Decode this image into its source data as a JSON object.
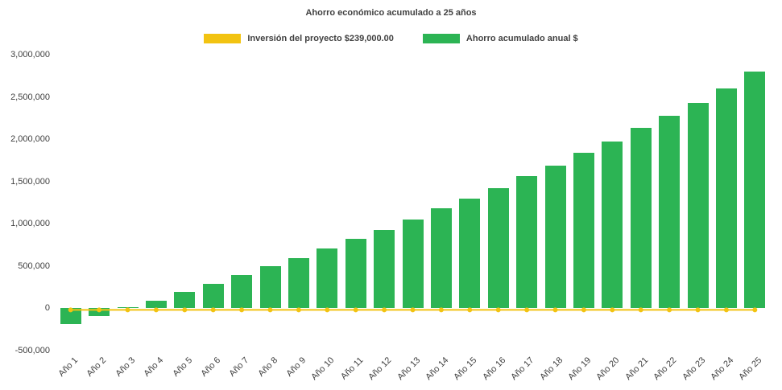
{
  "title": "Ahorro económico acumulado a 25 años",
  "legend": [
    {
      "label": "Inversión del proyecto $239,000.00",
      "color": "#F2C311"
    },
    {
      "label": "Ahorro acumulado anual $",
      "color": "#2CB454"
    }
  ],
  "colors": {
    "investment_line": "#F2C311",
    "savings_bar": "#2CB454",
    "text": "#404040",
    "background": "#FFFFFF"
  },
  "chart_data": {
    "type": "bar",
    "title": "Ahorro económico acumulado a 25 años",
    "xlabel": "",
    "ylabel": "",
    "ylim": [
      -500000,
      3000000
    ],
    "ytick_step": 500000,
    "grid": false,
    "legend_position": "top",
    "categories": [
      "Año 1",
      "Año 2",
      "Año 3",
      "Año 4",
      "Año 5",
      "Año 6",
      "Año 7",
      "Año 8",
      "Año 9",
      "Año 10",
      "Año 11",
      "Año 12",
      "Año 13",
      "Año 14",
      "Año 15",
      "Año 16",
      "Año 17",
      "Año 18",
      "Año 19",
      "Año 20",
      "Año 21",
      "Año 22",
      "Año 23",
      "Año 24",
      "Año 25"
    ],
    "series": [
      {
        "name": "Inversión del proyecto $239,000.00",
        "type": "line",
        "color": "#F2C311",
        "values": [
          0,
          0,
          0,
          0,
          0,
          0,
          0,
          0,
          0,
          0,
          0,
          0,
          0,
          0,
          0,
          0,
          0,
          0,
          0,
          0,
          0,
          0,
          0,
          0,
          0
        ]
      },
      {
        "name": "Ahorro acumulado anual $",
        "type": "bar",
        "color": "#2CB454",
        "values": [
          -190000,
          -95000,
          15000,
          90000,
          190000,
          285000,
          390000,
          495000,
          595000,
          705000,
          825000,
          930000,
          1055000,
          1180000,
          1300000,
          1425000,
          1560000,
          1690000,
          1835000,
          1975000,
          2130000,
          2280000,
          2430000,
          2605000,
          2800000
        ]
      }
    ]
  }
}
